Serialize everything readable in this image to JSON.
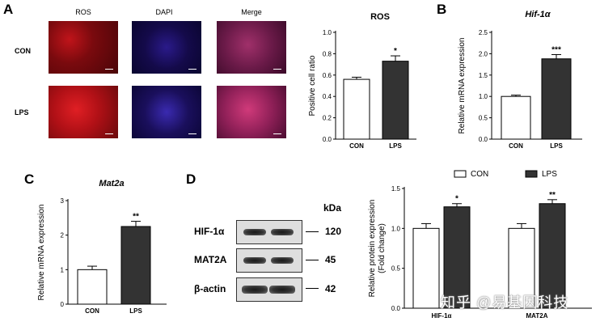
{
  "panels": {
    "a": "A",
    "b": "B",
    "c": "C",
    "d": "D"
  },
  "micrographs": {
    "columns": [
      "ROS",
      "DAPI",
      "Merge"
    ],
    "rows": [
      "CON",
      "LPS"
    ]
  },
  "chart_data": [
    {
      "type": "bar",
      "title": "ROS",
      "title_italic": false,
      "categories": [
        "CON",
        "LPS"
      ],
      "values": [
        0.56,
        0.73
      ],
      "errors": [
        0.02,
        0.05
      ],
      "significance": [
        "",
        "*"
      ],
      "ylabel": "Positive cell ratio",
      "ylim": [
        0,
        1.0
      ],
      "yticks": [
        "0.0",
        "0.2",
        "0.4",
        "0.6",
        "0.8",
        "1.0"
      ],
      "bar_colors": [
        "#ffffff",
        "#333333"
      ]
    },
    {
      "type": "bar",
      "title": "Hif-1α",
      "title_italic": true,
      "categories": [
        "CON",
        "LPS"
      ],
      "values": [
        1.0,
        1.88
      ],
      "errors": [
        0.03,
        0.1
      ],
      "significance": [
        "",
        "***"
      ],
      "ylabel": "Relative mRNA expression",
      "ylim": [
        0,
        2.5
      ],
      "yticks": [
        "0.0",
        "0.5",
        "1.0",
        "1.5",
        "2.0",
        "2.5"
      ],
      "bar_colors": [
        "#ffffff",
        "#333333"
      ]
    },
    {
      "type": "bar",
      "title": "Mat2a",
      "title_italic": true,
      "categories": [
        "CON",
        "LPS"
      ],
      "values": [
        1.0,
        2.25
      ],
      "errors": [
        0.1,
        0.15
      ],
      "significance": [
        "",
        "**"
      ],
      "ylabel": "Relative mRNA expression",
      "ylim": [
        0,
        3
      ],
      "yticks": [
        "0",
        "1",
        "2",
        "3"
      ],
      "bar_colors": [
        "#ffffff",
        "#333333"
      ]
    },
    {
      "type": "bar",
      "title": "",
      "categories": [
        "HIF-1α",
        "MAT2A"
      ],
      "series": [
        {
          "name": "CON",
          "values": [
            1.0,
            1.0
          ],
          "errors": [
            0.06,
            0.06
          ],
          "significance": [
            "",
            ""
          ],
          "color": "#ffffff"
        },
        {
          "name": "LPS",
          "values": [
            1.27,
            1.31
          ],
          "errors": [
            0.04,
            0.05
          ],
          "significance": [
            "*",
            "**"
          ],
          "color": "#333333"
        }
      ],
      "ylabel": "Relative protein expression",
      "ylabel2": "(Fold change)",
      "ylim": [
        0,
        1.5
      ],
      "yticks": [
        "0.0",
        "0.5",
        "1.0",
        "1.5"
      ],
      "legend": "top"
    }
  ],
  "western_blot": {
    "kda_header": "kDa",
    "rows": [
      {
        "protein": "HIF-1α",
        "kda": "120"
      },
      {
        "protein": "MAT2A",
        "kda": "45"
      },
      {
        "protein": "β-actin",
        "kda": "42"
      }
    ]
  },
  "watermark": "知乎 @易基因科技"
}
